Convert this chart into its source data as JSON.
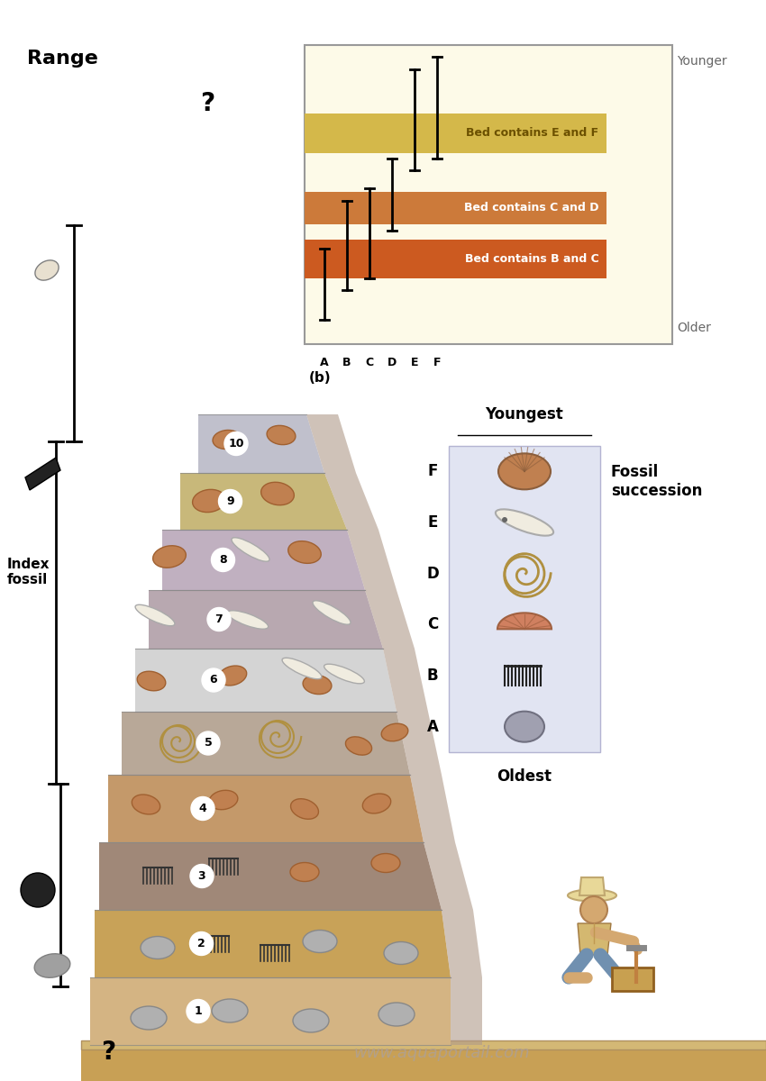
{
  "bg_color": "#ffffff",
  "watermark": "www.aquaportail.com",
  "range_label": "Range",
  "index_fossil_label": "Index\nfossil",
  "inset_bg": "#fdfae8",
  "inset_bed_EF_color": "#d4b84a",
  "inset_bed_EF_label": "Bed contains E and F",
  "inset_bed_CD_color": "#cc7a3a",
  "inset_bed_CD_label": "Bed contains C and D",
  "inset_bed_BC_color": "#cc5a20",
  "inset_bed_BC_label": "Bed contains B and C",
  "inset_younger_label": "Younger",
  "inset_older_label": "Older",
  "inset_bottom_label": "(b)",
  "inset_species": [
    "A",
    "B",
    "C",
    "D",
    "E",
    "F"
  ],
  "fossil_box_bg": "#dce0f0",
  "youngest_label": "Youngest",
  "oldest_label": "Oldest",
  "fossil_succession_label": "Fossil\nsuccession",
  "fossil_labels": [
    "F",
    "E",
    "D",
    "C",
    "B",
    "A"
  ],
  "layer_data": [
    [
      1,
      "#d4b483",
      1085,
      1160,
      100,
      500,
      500
    ],
    [
      2,
      "#c8a258",
      1010,
      1085,
      105,
      490,
      500
    ],
    [
      3,
      "#a08878",
      935,
      1010,
      110,
      470,
      490
    ],
    [
      4,
      "#c4996a",
      860,
      935,
      120,
      455,
      470
    ],
    [
      5,
      "#b8a898",
      790,
      860,
      135,
      440,
      455
    ],
    [
      6,
      "#d4d4d4",
      720,
      790,
      150,
      425,
      440
    ],
    [
      7,
      "#b8a8b0",
      655,
      720,
      165,
      405,
      425
    ],
    [
      8,
      "#c0b0c0",
      588,
      655,
      180,
      385,
      405
    ],
    [
      9,
      "#c8b87a",
      525,
      588,
      200,
      360,
      385
    ],
    [
      10,
      "#c0c0cc",
      460,
      525,
      220,
      340,
      360
    ]
  ]
}
